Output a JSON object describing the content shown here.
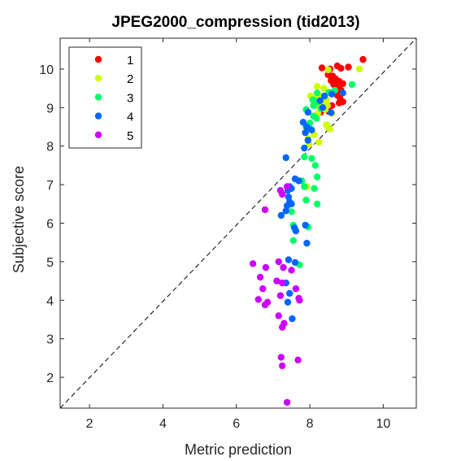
{
  "chart_data": {
    "type": "scatter",
    "title": "JPEG2000_compression (tid2013)",
    "xlabel": "Metric prediction",
    "ylabel": "Subjective score",
    "xlim": [
      1.2,
      10.9
    ],
    "ylim": [
      1.2,
      10.8
    ],
    "xticks": [
      2,
      4,
      6,
      8,
      10
    ],
    "yticks": [
      2,
      3,
      4,
      5,
      6,
      7,
      8,
      9,
      10
    ],
    "grid": false,
    "legend": "top-left",
    "reference_line": {
      "style": "dashed",
      "from": [
        1.2,
        1.2
      ],
      "to": [
        10.9,
        10.8
      ]
    },
    "series": [
      {
        "name": "1",
        "color": "#ff0000",
        "points": [
          [
            8.33,
            10.03
          ],
          [
            8.55,
            10.0
          ],
          [
            8.75,
            10.08
          ],
          [
            8.85,
            10.02
          ],
          [
            9.05,
            10.05
          ],
          [
            9.45,
            10.25
          ],
          [
            8.5,
            9.85
          ],
          [
            8.62,
            9.82
          ],
          [
            8.7,
            9.75
          ],
          [
            8.58,
            9.7
          ],
          [
            8.8,
            9.68
          ],
          [
            8.9,
            9.62
          ],
          [
            8.65,
            9.6
          ],
          [
            8.72,
            9.55
          ],
          [
            8.78,
            9.5
          ],
          [
            8.85,
            9.45
          ],
          [
            8.68,
            9.4
          ],
          [
            8.75,
            9.32
          ],
          [
            8.82,
            9.25
          ],
          [
            8.9,
            9.15
          ],
          [
            8.8,
            9.12
          ],
          [
            8.6,
            9.05
          ],
          [
            8.4,
            8.95
          ],
          [
            8.52,
            8.9
          ],
          [
            8.3,
            8.88
          ]
        ]
      },
      {
        "name": "2",
        "color": "#ccff00",
        "points": [
          [
            9.35,
            10.0
          ],
          [
            8.5,
            9.98
          ],
          [
            8.2,
            9.55
          ],
          [
            8.38,
            9.5
          ],
          [
            8.02,
            9.3
          ],
          [
            8.18,
            9.25
          ],
          [
            8.35,
            9.3
          ],
          [
            8.45,
            9.2
          ],
          [
            8.32,
            9.1
          ],
          [
            8.15,
            9.05
          ],
          [
            8.48,
            9.05
          ],
          [
            8.42,
            8.95
          ],
          [
            8.22,
            8.85
          ],
          [
            8.6,
            8.85
          ],
          [
            8.45,
            8.55
          ],
          [
            8.5,
            8.48
          ],
          [
            8.55,
            8.45
          ],
          [
            8.12,
            8.3
          ],
          [
            7.95,
            8.2
          ],
          [
            8.25,
            8.1
          ],
          [
            7.98,
            8.05
          ],
          [
            7.92,
            6.95
          ]
        ]
      },
      {
        "name": "3",
        "color": "#00ff66",
        "points": [
          [
            9.15,
            9.6
          ],
          [
            8.68,
            9.45
          ],
          [
            8.52,
            9.4
          ],
          [
            8.2,
            9.38
          ],
          [
            8.08,
            9.2
          ],
          [
            8.22,
            9.15
          ],
          [
            8.1,
            9.05
          ],
          [
            8.3,
            8.98
          ],
          [
            7.9,
            8.95
          ],
          [
            8.1,
            8.78
          ],
          [
            8.18,
            8.72
          ],
          [
            8.0,
            8.6
          ],
          [
            8.0,
            8.45
          ],
          [
            7.88,
            8.35
          ],
          [
            7.9,
            8.5
          ],
          [
            7.85,
            7.72
          ],
          [
            8.05,
            7.68
          ],
          [
            8.15,
            7.5
          ],
          [
            8.2,
            7.2
          ],
          [
            7.78,
            7.1
          ],
          [
            7.85,
            6.95
          ],
          [
            8.12,
            6.9
          ],
          [
            7.9,
            6.6
          ],
          [
            8.2,
            6.5
          ],
          [
            7.5,
            6.3
          ],
          [
            7.55,
            5.95
          ],
          [
            7.95,
            5.9
          ],
          [
            7.55,
            5.55
          ],
          [
            7.72,
            4.92
          ]
        ]
      },
      {
        "name": "4",
        "color": "#0066ff",
        "points": [
          [
            8.9,
            9.38
          ],
          [
            8.6,
            9.35
          ],
          [
            8.4,
            9.3
          ],
          [
            8.28,
            9.18
          ],
          [
            8.35,
            9.0
          ],
          [
            7.95,
            8.88
          ],
          [
            8.58,
            8.87
          ],
          [
            7.82,
            8.62
          ],
          [
            7.92,
            8.5
          ],
          [
            8.05,
            8.42
          ],
          [
            7.88,
            8.35
          ],
          [
            7.95,
            8.15
          ],
          [
            7.85,
            7.95
          ],
          [
            7.35,
            7.7
          ],
          [
            7.6,
            7.15
          ],
          [
            7.7,
            7.1
          ],
          [
            7.45,
            6.95
          ],
          [
            7.5,
            6.9
          ],
          [
            7.4,
            6.85
          ],
          [
            7.42,
            6.68
          ],
          [
            7.45,
            6.55
          ],
          [
            7.5,
            6.5
          ],
          [
            7.38,
            6.45
          ],
          [
            7.35,
            6.32
          ],
          [
            7.22,
            6.2
          ],
          [
            7.88,
            5.95
          ],
          [
            7.58,
            5.88
          ],
          [
            7.62,
            5.8
          ],
          [
            7.92,
            5.48
          ],
          [
            7.42,
            5.05
          ],
          [
            7.6,
            4.98
          ],
          [
            7.35,
            4.45
          ],
          [
            7.45,
            4.18
          ],
          [
            7.4,
            3.95
          ],
          [
            7.52,
            3.52
          ]
        ]
      },
      {
        "name": "5",
        "color": "#cc00ff",
        "points": [
          [
            7.2,
            6.85
          ],
          [
            7.25,
            6.75
          ],
          [
            7.38,
            6.95
          ],
          [
            6.78,
            6.35
          ],
          [
            6.45,
            4.95
          ],
          [
            6.8,
            4.85
          ],
          [
            7.15,
            5.0
          ],
          [
            7.28,
            4.85
          ],
          [
            7.5,
            4.78
          ],
          [
            6.65,
            4.6
          ],
          [
            7.1,
            4.5
          ],
          [
            7.25,
            4.45
          ],
          [
            6.72,
            4.3
          ],
          [
            7.62,
            4.3
          ],
          [
            7.2,
            4.12
          ],
          [
            7.7,
            4.05
          ],
          [
            6.6,
            4.02
          ],
          [
            6.85,
            3.95
          ],
          [
            6.78,
            3.88
          ],
          [
            7.72,
            4.0
          ],
          [
            7.15,
            3.6
          ],
          [
            7.3,
            3.4
          ],
          [
            7.25,
            3.3
          ],
          [
            7.22,
            2.52
          ],
          [
            7.68,
            2.45
          ],
          [
            7.25,
            2.3
          ],
          [
            7.38,
            1.35
          ]
        ]
      }
    ]
  }
}
